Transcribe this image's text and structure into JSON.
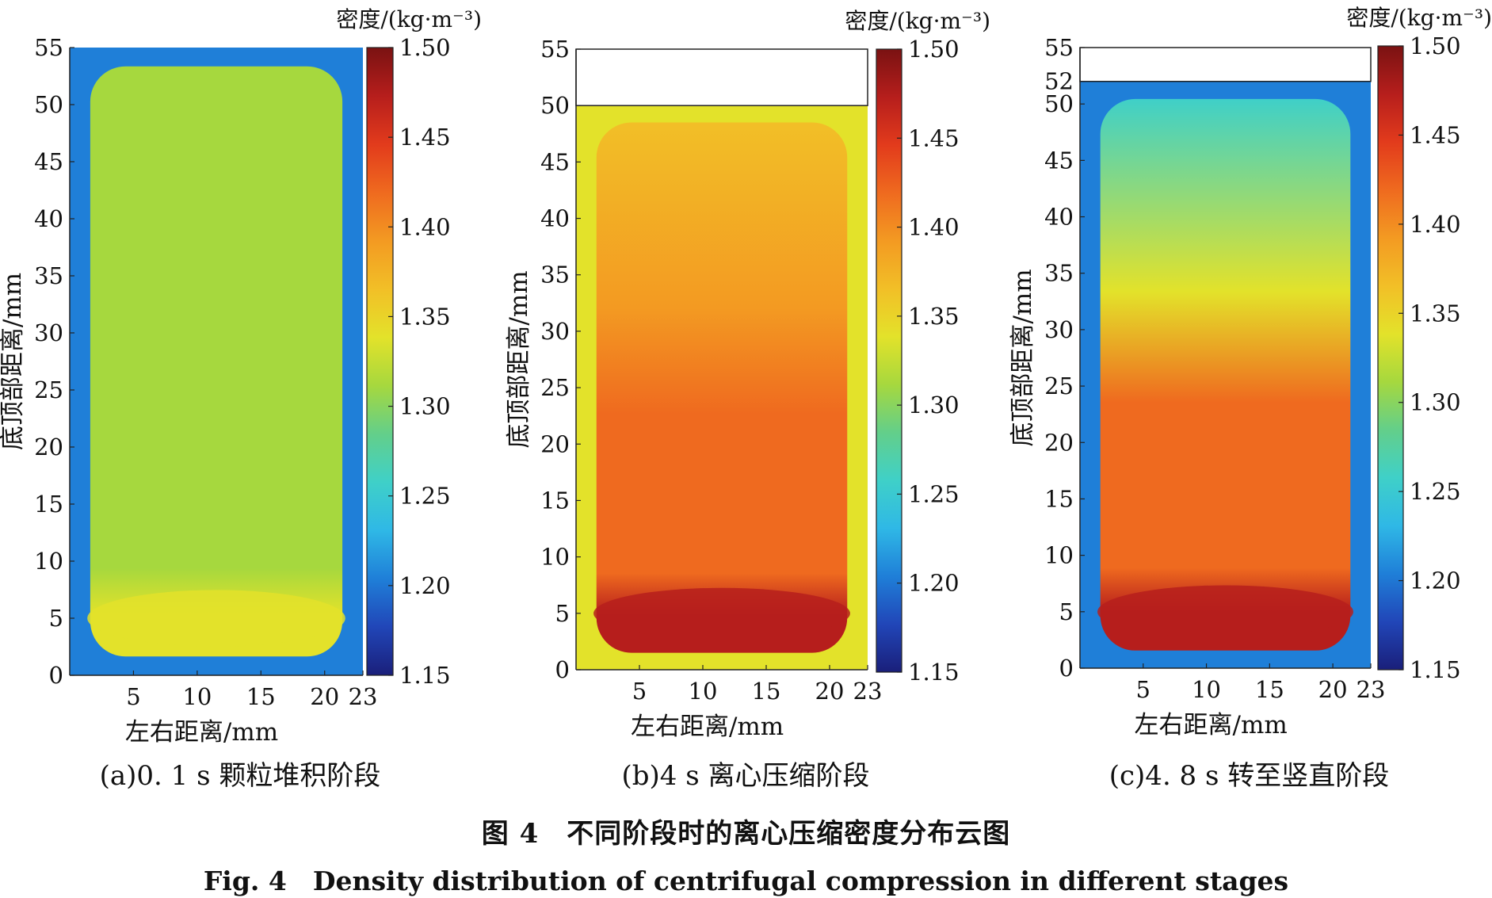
{
  "figure": {
    "caption_zh": "图 4　不同阶段时的离心压缩密度分布云图",
    "caption_en": "Fig. 4　Density distribution of centrifugal compression in different stages"
  },
  "colors": {
    "colormap": [
      "#1a1f7a",
      "#2146b8",
      "#1f7fd8",
      "#2fb8e6",
      "#3fd0c8",
      "#63cf8a",
      "#a6d83e",
      "#e3e22a",
      "#f2bf27",
      "#f39a22",
      "#ef6a1f",
      "#e23b1c",
      "#b61e1c",
      "#7a1212"
    ]
  },
  "chart_data": [
    {
      "type": "heatmap",
      "panel_label": "(a)0. 1 s 颗粒堆积阶段",
      "xlabel": "左右距离/mm",
      "ylabel": "底顶部距离/mm",
      "colorbar_label": "密度/(kg·m⁻³)",
      "colorbar_ticks": [
        "1.15",
        "1.20",
        "1.25",
        "1.30",
        "1.35",
        "1.40",
        "1.45",
        "1.50"
      ],
      "clim": [
        1.15,
        1.5
      ],
      "xlim": [
        0,
        23
      ],
      "ylim": [
        0,
        55
      ],
      "xticks": [
        "5",
        "10",
        "15",
        "20",
        "23"
      ],
      "yticks": [
        "0",
        "5",
        "10",
        "15",
        "20",
        "25",
        "30",
        "35",
        "40",
        "45",
        "50",
        "55"
      ],
      "fill_top": 55,
      "approx_density": {
        "interior": 1.31,
        "bottom_band": 1.33,
        "top_band": 1.32,
        "edges": 1.2
      }
    },
    {
      "type": "heatmap",
      "panel_label": "(b)4 s 离心压缩阶段",
      "xlabel": "左右距离/mm",
      "ylabel": "底顶部距离/mm",
      "colorbar_label": "密度/(kg·m⁻³)",
      "colorbar_ticks": [
        "1.15",
        "1.20",
        "1.25",
        "1.30",
        "1.35",
        "1.40",
        "1.45",
        "1.50"
      ],
      "clim": [
        1.15,
        1.5
      ],
      "xlim": [
        0,
        23
      ],
      "ylim": [
        0,
        55
      ],
      "xticks": [
        "5",
        "10",
        "15",
        "20",
        "23"
      ],
      "yticks": [
        "0",
        "5",
        "10",
        "15",
        "20",
        "25",
        "30",
        "35",
        "40",
        "45",
        "50",
        "55"
      ],
      "fill_top": 50,
      "approx_density": {
        "interior": 1.42,
        "bottom_band": 1.46,
        "top_band": 1.37,
        "edges": 1.33
      }
    },
    {
      "type": "heatmap",
      "panel_label": "(c)4. 8 s 转至竖直阶段",
      "xlabel": "左右距离/mm",
      "ylabel": "底顶部距离/mm",
      "colorbar_label": "密度/(kg·m⁻³)",
      "colorbar_ticks": [
        "1.15",
        "1.20",
        "1.25",
        "1.30",
        "1.35",
        "1.40",
        "1.45",
        "1.50"
      ],
      "clim": [
        1.15,
        1.5
      ],
      "xlim": [
        0,
        23
      ],
      "ylim": [
        0,
        55
      ],
      "xticks": [
        "5",
        "10",
        "15",
        "20",
        "23"
      ],
      "yticks": [
        "0",
        "5",
        "10",
        "15",
        "20",
        "25",
        "30",
        "35",
        "40",
        "45",
        "50",
        "52",
        "55"
      ],
      "fill_top": 52,
      "approx_density": {
        "interior": 1.41,
        "bottom_band": 1.46,
        "top_band": 1.25,
        "edges": 1.2
      }
    }
  ]
}
